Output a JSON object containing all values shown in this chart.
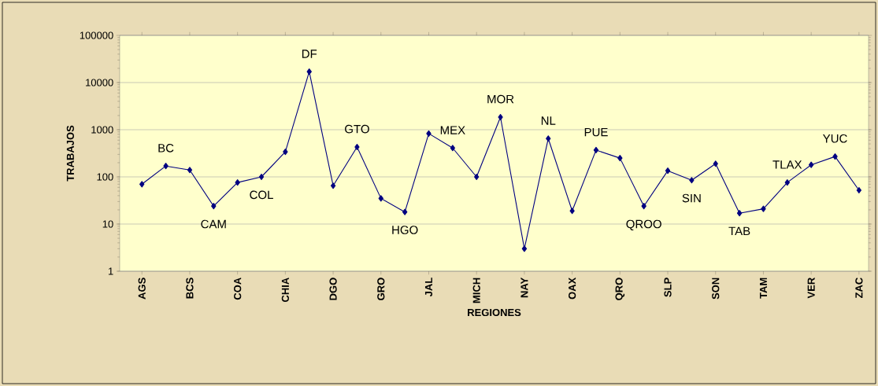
{
  "chart_data": {
    "type": "line",
    "xlabel": "REGIONES",
    "ylabel": "TRABAJOS",
    "categories": [
      "AGS",
      null,
      "BCS",
      null,
      "COA",
      null,
      "CHIA",
      null,
      "DGO",
      null,
      "GRO",
      null,
      "JAL",
      null,
      "MICH",
      null,
      "NAY",
      null,
      "OAX",
      null,
      "QRO",
      null,
      "SLP",
      null,
      "SON",
      null,
      "TAM",
      null,
      "VER",
      null,
      "ZAC"
    ],
    "values": [
      70,
      170,
      140,
      24,
      76,
      100,
      340,
      17000,
      65,
      430,
      35,
      18,
      830,
      410,
      100,
      1850,
      3,
      650,
      19,
      370,
      250,
      24,
      135,
      85,
      190,
      17,
      21,
      76,
      180,
      270,
      52
    ],
    "color": "#000080",
    "marker": "diamond",
    "line_style": "solid",
    "log": "y",
    "ylim": [
      1,
      100000
    ],
    "yticks": [
      1,
      10,
      100,
      1000,
      10000,
      100000
    ],
    "grid": "y",
    "annotations": [
      "BC",
      "CAM",
      "COL",
      "DF",
      "GTO",
      "HGO",
      "MEX",
      "MOR",
      "NL",
      "PUE",
      "QROO",
      "SIN",
      "TAB",
      "TLAX",
      "YUC"
    ]
  }
}
